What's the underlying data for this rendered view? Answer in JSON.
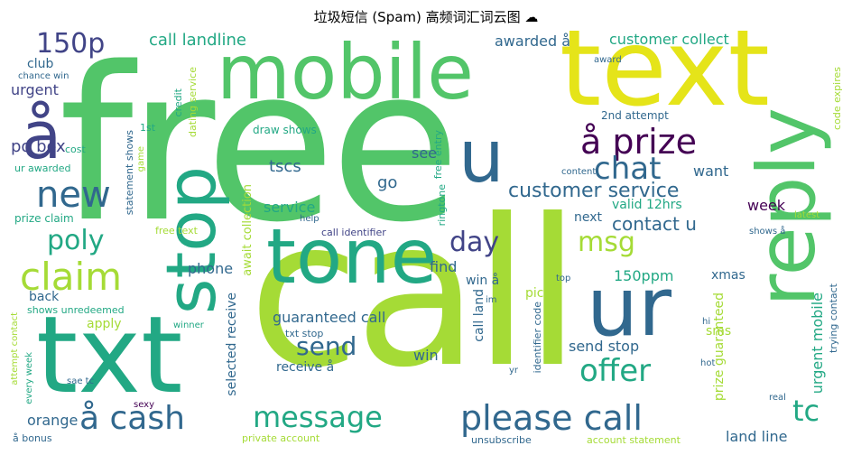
{
  "title": "垃圾短信 (Spam) 高频词汇词云图 ☁",
  "colors": {
    "green": "#52c569",
    "lime": "#a5db36",
    "yellow": "#e5e419",
    "teal": "#2a788e",
    "teal2": "#22a884",
    "navy": "#414487",
    "purple": "#440154",
    "blue": "#31688e"
  },
  "words": [
    "free",
    "call",
    "txt",
    "text",
    "mobile",
    "reply",
    "stop",
    "tone",
    "ur",
    "å",
    "claim",
    "new",
    "u",
    "150p",
    "å prize",
    "chat",
    "customer service",
    "msg",
    "day",
    "poly",
    "send",
    "please call",
    "message",
    "å cash",
    "offer",
    "tc",
    "call landline",
    "customer collect",
    "awarded å",
    "club",
    "urgent",
    "chance win",
    "po box",
    "ur awarded",
    "prize claim",
    "cost",
    "statement shows",
    "1st",
    "credit",
    "dating service",
    "draw shows",
    "game",
    "free entry",
    "tscs",
    "go",
    "see",
    "service",
    "contact u",
    "want",
    "week",
    "valid 12hrs",
    "2nd attempt",
    "award",
    "code expires",
    "content",
    "latest",
    "help",
    "await collection",
    "call identifier",
    "ringtone",
    "free text",
    "next",
    "shows å",
    "phone",
    "find",
    "150ppm",
    "xmas",
    "back",
    "apply",
    "shows unredeemed",
    "winner",
    "attempt contact",
    "every week",
    "sae tc",
    "å bonus",
    "sexy",
    "selected receive",
    "guaranteed call",
    "txt stop",
    "receive å",
    "win å",
    "pic",
    "call land",
    "win",
    "identifier code",
    "im",
    "yr",
    "top",
    "sms",
    "send stop",
    "prize guaranteed",
    "urgent mobile",
    "trying contact",
    "hi",
    "hot",
    "real",
    "land line",
    "orange",
    "private account",
    "unsubscribe",
    "account statement"
  ]
}
